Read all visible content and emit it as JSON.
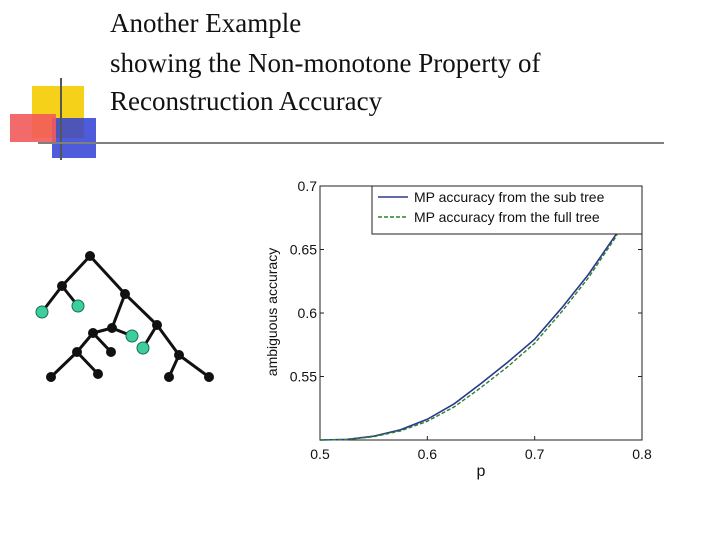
{
  "slide": {
    "title_lines": [
      "Another Example",
      "showing the Non-monotone Property of",
      "Reconstruction Accuracy"
    ]
  },
  "colors": {
    "deco_yellow": "#f5d11a",
    "deco_red": "#f25a5a",
    "deco_blue": "#2f3fd6",
    "rule": "#7f7f7f",
    "node_black": "#111111",
    "node_green": "#3ccf9c",
    "series_sub": "#2b3a8c",
    "series_full": "#2e7d32"
  },
  "tree_diagram": {
    "nodes": [
      {
        "id": "root",
        "color": "black"
      },
      {
        "id": "n1",
        "color": "black"
      },
      {
        "id": "n2",
        "color": "black"
      },
      {
        "id": "leaf-a",
        "color": "green"
      },
      {
        "id": "leaf-b",
        "color": "green"
      },
      {
        "id": "n3",
        "color": "black"
      },
      {
        "id": "n4",
        "color": "black"
      },
      {
        "id": "leaf-c",
        "color": "green"
      },
      {
        "id": "n5",
        "color": "black"
      },
      {
        "id": "leaf-d",
        "color": "green"
      },
      {
        "id": "n6",
        "color": "black"
      },
      {
        "id": "n7",
        "color": "black"
      },
      {
        "id": "n8",
        "color": "black"
      },
      {
        "id": "n9",
        "color": "black"
      },
      {
        "id": "n10",
        "color": "black"
      },
      {
        "id": "n11",
        "color": "black"
      },
      {
        "id": "n12",
        "color": "black"
      }
    ],
    "edges": [
      [
        "root",
        "n1"
      ],
      [
        "root",
        "n2"
      ],
      [
        "n1",
        "leaf-a"
      ],
      [
        "n1",
        "leaf-b"
      ],
      [
        "n2",
        "n3"
      ],
      [
        "n2",
        "n4"
      ],
      [
        "n3",
        "n5"
      ],
      [
        "n3",
        "leaf-c"
      ],
      [
        "n4",
        "leaf-d"
      ],
      [
        "n4",
        "n6"
      ],
      [
        "n5",
        "n7"
      ],
      [
        "n5",
        "n8"
      ],
      [
        "n7",
        "n9"
      ],
      [
        "n7",
        "n10"
      ],
      [
        "n6",
        "n11"
      ],
      [
        "n6",
        "n12"
      ]
    ]
  },
  "chart_data": {
    "type": "line",
    "xlabel": "p",
    "ylabel": "ambiguous accuracy",
    "xlim": [
      0.5,
      0.8
    ],
    "ylim": [
      0.5,
      0.7
    ],
    "xticks": [
      "0.5",
      "0.6",
      "0.7",
      "0.8"
    ],
    "yticks": [
      "0.55",
      "0.6",
      "0.65",
      "0.7"
    ],
    "grid": false,
    "legend_position": "top-right",
    "series": [
      {
        "name": "MP accuracy from the sub tree",
        "style": "solid",
        "x": [
          0.5,
          0.525,
          0.55,
          0.575,
          0.6,
          0.625,
          0.65,
          0.675,
          0.7,
          0.725,
          0.75,
          0.775,
          0.8
        ],
        "y": [
          0.5,
          0.5005,
          0.503,
          0.508,
          0.5163,
          0.5285,
          0.5445,
          0.5613,
          0.5794,
          0.6038,
          0.6302,
          0.6609,
          0.7
        ]
      },
      {
        "name": "MP accuracy from the full tree",
        "style": "dashed",
        "x": [
          0.5,
          0.525,
          0.55,
          0.575,
          0.6,
          0.625,
          0.65,
          0.675,
          0.7,
          0.725,
          0.75,
          0.775,
          0.8
        ],
        "y": [
          0.5,
          0.5004,
          0.5026,
          0.5072,
          0.5147,
          0.5261,
          0.5413,
          0.5578,
          0.5762,
          0.6008,
          0.6276,
          0.6591,
          0.6995
        ]
      }
    ]
  }
}
